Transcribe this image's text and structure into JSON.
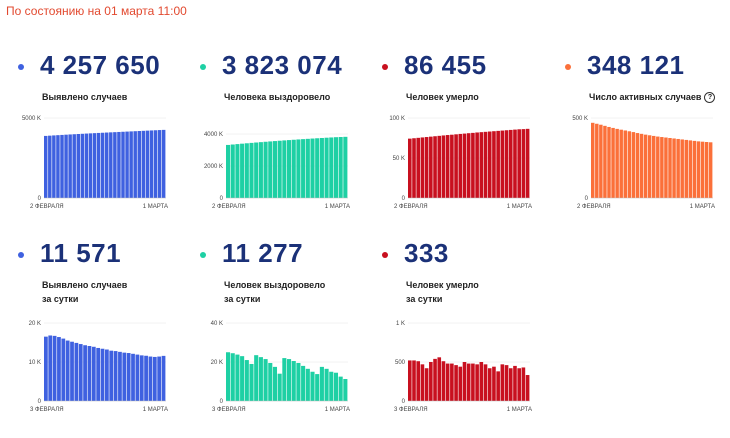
{
  "header": "По состоянию на 01 марта 11:00",
  "cards": [
    {
      "value": "4 257 650",
      "label1": "Выявлено случаев",
      "label2": "",
      "color": "#3f61e0",
      "help": false,
      "x_start": "2 ФЕВРАЛЯ",
      "x_end": "1 МАРТА",
      "y_ticks": [
        "5000 K",
        "0"
      ]
    },
    {
      "value": "3 823 074",
      "label1": "Человека выздоровело",
      "label2": "",
      "color": "#1ed0a4",
      "help": false,
      "x_start": "2 ФЕВРАЛЯ",
      "x_end": "1 МАРТА",
      "y_ticks": [
        "4000 K",
        "2000 K",
        "0"
      ]
    },
    {
      "value": "86 455",
      "label1": "Человек умерло",
      "label2": "",
      "color": "#c8101f",
      "help": false,
      "x_start": "2 ФЕВРАЛЯ",
      "x_end": "1 МАРТА",
      "y_ticks": [
        "100 K",
        "50 K",
        "0"
      ]
    },
    {
      "value": "348 121",
      "label1": "Число активных случаев",
      "label2": "",
      "color": "#fb703a",
      "help": true,
      "x_start": "2 ФЕВРАЛЯ",
      "x_end": "1 МАРТА",
      "y_ticks": [
        "500 K",
        "0"
      ]
    },
    {
      "value": "11 571",
      "label1": "Выявлено случаев",
      "label2": "за сутки",
      "color": "#3f61e0",
      "help": false,
      "x_start": "3 ФЕВРАЛЯ",
      "x_end": "1 МАРТА",
      "y_ticks": [
        "20 K",
        "10 K",
        "0"
      ]
    },
    {
      "value": "11 277",
      "label1": "Человек выздоровело",
      "label2": "за сутки",
      "color": "#1ed0a4",
      "help": false,
      "x_start": "3 ФЕВРАЛЯ",
      "x_end": "1 МАРТА",
      "y_ticks": [
        "40 K",
        "20 K",
        "0"
      ]
    },
    {
      "value": "333",
      "label1": "Человек умерло",
      "label2": "за сутки",
      "color": "#c8101f",
      "help": false,
      "x_start": "3 ФЕВРАЛЯ",
      "x_end": "1 МАРТА",
      "y_ticks": [
        "1 K",
        "500",
        "0"
      ]
    }
  ],
  "chart_data": [
    {
      "type": "bar",
      "color": "#3f61e0",
      "ylim": [
        0,
        5000000
      ],
      "y_tick_values": [
        5000000,
        0
      ],
      "values": [
        3880000,
        3896000,
        3912000,
        3927000,
        3942000,
        3957000,
        3972000,
        3986000,
        4000000,
        4013000,
        4027000,
        4040000,
        4053000,
        4066000,
        4078000,
        4091000,
        4103000,
        4115000,
        4127000,
        4139000,
        4151000,
        4163000,
        4175000,
        4187000,
        4199000,
        4211000,
        4223000,
        4234000,
        4246000,
        4257650
      ]
    },
    {
      "type": "bar",
      "color": "#1ed0a4",
      "ylim": [
        0,
        5000000
      ],
      "y_tick_values": [
        4000000,
        2000000,
        0
      ],
      "values": [
        3316000,
        3343000,
        3369000,
        3395000,
        3420000,
        3444000,
        3468000,
        3491000,
        3514000,
        3536000,
        3558000,
        3579000,
        3600000,
        3620000,
        3640000,
        3660000,
        3679000,
        3698000,
        3716000,
        3734000,
        3751000,
        3768000,
        3784000,
        3800000,
        3812000,
        3823074
      ]
    },
    {
      "type": "bar",
      "color": "#c8101f",
      "ylim": [
        0,
        100000
      ],
      "y_tick_values": [
        100000,
        50000,
        0
      ],
      "values": [
        74200,
        74700,
        75200,
        75700,
        76200,
        76700,
        77200,
        77700,
        78200,
        78700,
        79100,
        79600,
        80100,
        80500,
        81000,
        81400,
        81900,
        82300,
        82700,
        83100,
        83500,
        83900,
        84300,
        84700,
        85100,
        85500,
        85900,
        86100,
        86455
      ]
    },
    {
      "type": "bar",
      "color": "#fb703a",
      "ylim": [
        0,
        500000
      ],
      "y_tick_values": [
        500000,
        0
      ],
      "values": [
        470000,
        464000,
        458000,
        451000,
        444000,
        438000,
        432000,
        427000,
        422000,
        417000,
        412000,
        406000,
        401000,
        396000,
        392000,
        388000,
        384000,
        381000,
        378000,
        375000,
        372000,
        369000,
        366000,
        363000,
        360000,
        357000,
        354000,
        352000,
        350000,
        348121
      ]
    },
    {
      "type": "bar",
      "color": "#3f61e0",
      "ylim": [
        0,
        20000
      ],
      "y_tick_values": [
        20000,
        10000,
        0
      ],
      "values": [
        16500,
        16800,
        16700,
        16400,
        16000,
        15500,
        15200,
        14900,
        14600,
        14300,
        14100,
        13900,
        13600,
        13400,
        13200,
        12900,
        12800,
        12600,
        12400,
        12300,
        12100,
        11900,
        11700,
        11600,
        11400,
        11300,
        11400,
        11571
      ]
    },
    {
      "type": "bar",
      "color": "#1ed0a4",
      "ylim": [
        0,
        40000
      ],
      "y_tick_values": [
        40000,
        20000,
        0
      ],
      "values": [
        25000,
        24500,
        23800,
        23000,
        21000,
        19000,
        23500,
        22500,
        21500,
        19500,
        17500,
        14000,
        22000,
        21500,
        20500,
        19500,
        18000,
        16500,
        15000,
        13800,
        17500,
        16500,
        15000,
        14500,
        12500,
        11277
      ]
    },
    {
      "type": "bar",
      "color": "#c8101f",
      "ylim": [
        0,
        1000
      ],
      "y_tick_values": [
        1000,
        500,
        0
      ],
      "values": [
        520,
        520,
        510,
        470,
        420,
        500,
        540,
        560,
        510,
        480,
        480,
        460,
        440,
        500,
        480,
        480,
        470,
        500,
        470,
        420,
        440,
        380,
        470,
        460,
        420,
        450,
        420,
        430,
        333
      ]
    }
  ]
}
